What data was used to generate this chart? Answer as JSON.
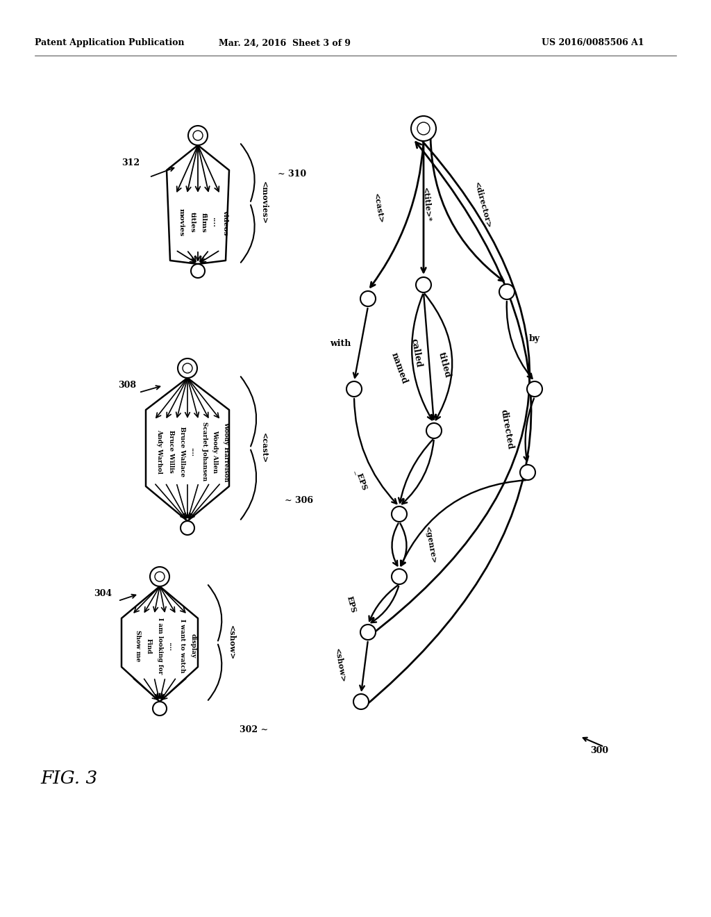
{
  "bg_color": "#ffffff",
  "header_left": "Patent Application Publication",
  "header_mid": "Mar. 24, 2016  Sheet 3 of 9",
  "header_right": "US 2016/0085506 A1",
  "fig_label": "FIG. 3",
  "show_words": [
    "Show me",
    "Find",
    "I am looking for",
    "....",
    "I want to watch",
    "display"
  ],
  "cast_words": [
    "Andy Warhol",
    "Bruce Willis",
    "Bruce Wallace",
    "....",
    "Scarlet Johansen",
    "Woody Allen",
    "Woody Harrelson"
  ],
  "movies_words": [
    "movies",
    "titles",
    "films",
    "....",
    "videos"
  ],
  "text_color": "#000000"
}
